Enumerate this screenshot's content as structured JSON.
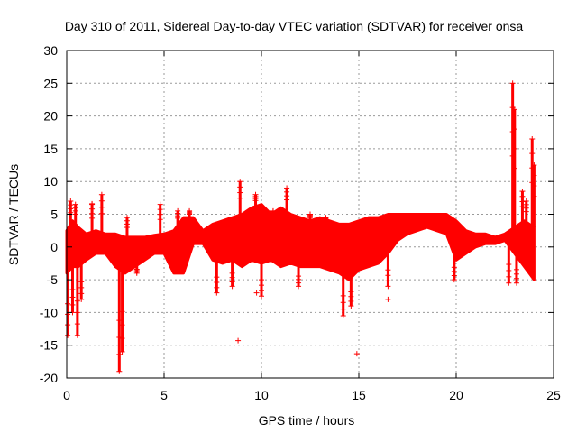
{
  "chart_data": {
    "type": "scatter",
    "title": "Day 310 of 2011, Sidereal Day-to-day VTEC variation (SDTVAR) for receiver onsa",
    "xlabel": "GPS time / hours",
    "ylabel": "SDTVAR / TECUs",
    "xlim": [
      0,
      25
    ],
    "ylim": [
      -20,
      30
    ],
    "xticks": [
      0,
      5,
      10,
      15,
      20,
      25
    ],
    "yticks": [
      -20,
      -15,
      -10,
      -5,
      0,
      5,
      10,
      15,
      20,
      25,
      30
    ],
    "xtick_labels": [
      "0",
      "5",
      "10",
      "15",
      "20",
      "25"
    ],
    "ytick_labels": [
      "-20",
      "-15",
      "-10",
      "-5",
      "0",
      "5",
      "10",
      "15",
      "20",
      "25",
      "30"
    ],
    "grid": true,
    "series_color": "#ff0000",
    "series": [
      {
        "name": "SDTVAR",
        "marker": "plus",
        "envelope": {
          "x": [
            0.0,
            0.3,
            0.6,
            1.0,
            1.5,
            2.0,
            2.5,
            3.0,
            3.5,
            4.0,
            4.5,
            5.0,
            5.5,
            6.0,
            6.5,
            7.0,
            7.5,
            8.0,
            8.5,
            9.0,
            9.5,
            10.0,
            10.5,
            11.0,
            11.5,
            12.0,
            12.5,
            13.0,
            13.5,
            14.0,
            14.5,
            15.0,
            15.5,
            16.0,
            16.5,
            17.0,
            17.5,
            18.0,
            18.5,
            19.0,
            19.5,
            20.0,
            20.5,
            21.0,
            21.5,
            22.0,
            22.5,
            23.0,
            23.5,
            24.0
          ],
          "upper": [
            2.5,
            4.0,
            3.0,
            2.0,
            2.5,
            2.0,
            2.0,
            1.5,
            1.5,
            1.5,
            1.8,
            2.0,
            2.5,
            4.5,
            4.5,
            2.5,
            3.5,
            4.0,
            4.5,
            5.0,
            6.0,
            6.5,
            5.0,
            6.0,
            5.0,
            4.5,
            4.0,
            4.5,
            4.0,
            3.5,
            3.5,
            4.0,
            4.5,
            4.5,
            5.0,
            5.0,
            5.0,
            5.0,
            5.0,
            5.0,
            5.0,
            4.0,
            2.5,
            2.0,
            2.0,
            1.5,
            2.0,
            3.0,
            4.0,
            3.0
          ],
          "lower": [
            -4.0,
            -3.0,
            -3.0,
            -2.0,
            -1.0,
            -1.0,
            -3.0,
            -4.0,
            -3.0,
            -2.0,
            -1.0,
            -1.0,
            -4.0,
            -4.0,
            0.5,
            0.5,
            -2.0,
            -2.5,
            -2.0,
            -3.0,
            -2.0,
            -2.5,
            -2.0,
            -3.0,
            -2.5,
            -3.0,
            -3.0,
            -3.0,
            -3.5,
            -4.0,
            -5.0,
            -3.5,
            -3.0,
            -2.5,
            -1.0,
            1.0,
            2.0,
            2.5,
            3.0,
            2.5,
            2.0,
            -2.0,
            -1.0,
            0.0,
            0.5,
            0.5,
            1.0,
            -1.0,
            -3.0,
            -5.0
          ]
        },
        "spikes": [
          [
            0.05,
            -13.5
          ],
          [
            0.2,
            7.0
          ],
          [
            0.3,
            -10.0
          ],
          [
            0.45,
            6.5
          ],
          [
            0.55,
            -13.5
          ],
          [
            0.75,
            -8.0
          ],
          [
            1.3,
            6.5
          ],
          [
            1.8,
            8.0
          ],
          [
            2.7,
            -19.0
          ],
          [
            2.85,
            -16.0
          ],
          [
            3.1,
            4.5
          ],
          [
            3.6,
            -4.0
          ],
          [
            4.8,
            6.5
          ],
          [
            5.7,
            5.5
          ],
          [
            6.3,
            5.5
          ],
          [
            7.7,
            -7.0
          ],
          [
            8.5,
            -6.0
          ],
          [
            8.9,
            10.0
          ],
          [
            9.7,
            8.0
          ],
          [
            10.0,
            -7.5
          ],
          [
            10.6,
            5.5
          ],
          [
            11.3,
            9.0
          ],
          [
            11.9,
            -6.0
          ],
          [
            12.5,
            5.0
          ],
          [
            13.3,
            4.5
          ],
          [
            14.2,
            -10.5
          ],
          [
            14.6,
            -9.0
          ],
          [
            16.5,
            -6.0
          ],
          [
            19.9,
            -5.0
          ],
          [
            22.7,
            -5.5
          ],
          [
            22.9,
            25.0
          ],
          [
            23.0,
            21.0
          ],
          [
            23.1,
            -5.5
          ],
          [
            23.4,
            8.5
          ],
          [
            23.6,
            7.0
          ],
          [
            23.9,
            16.5
          ],
          [
            24.0,
            12.5
          ]
        ],
        "isolated_points": [
          [
            8.8,
            -14.3
          ],
          [
            9.75,
            -7.0
          ],
          [
            14.9,
            -16.3
          ],
          [
            16.5,
            -8.0
          ],
          [
            1.3,
            6.6
          ]
        ]
      }
    ]
  }
}
